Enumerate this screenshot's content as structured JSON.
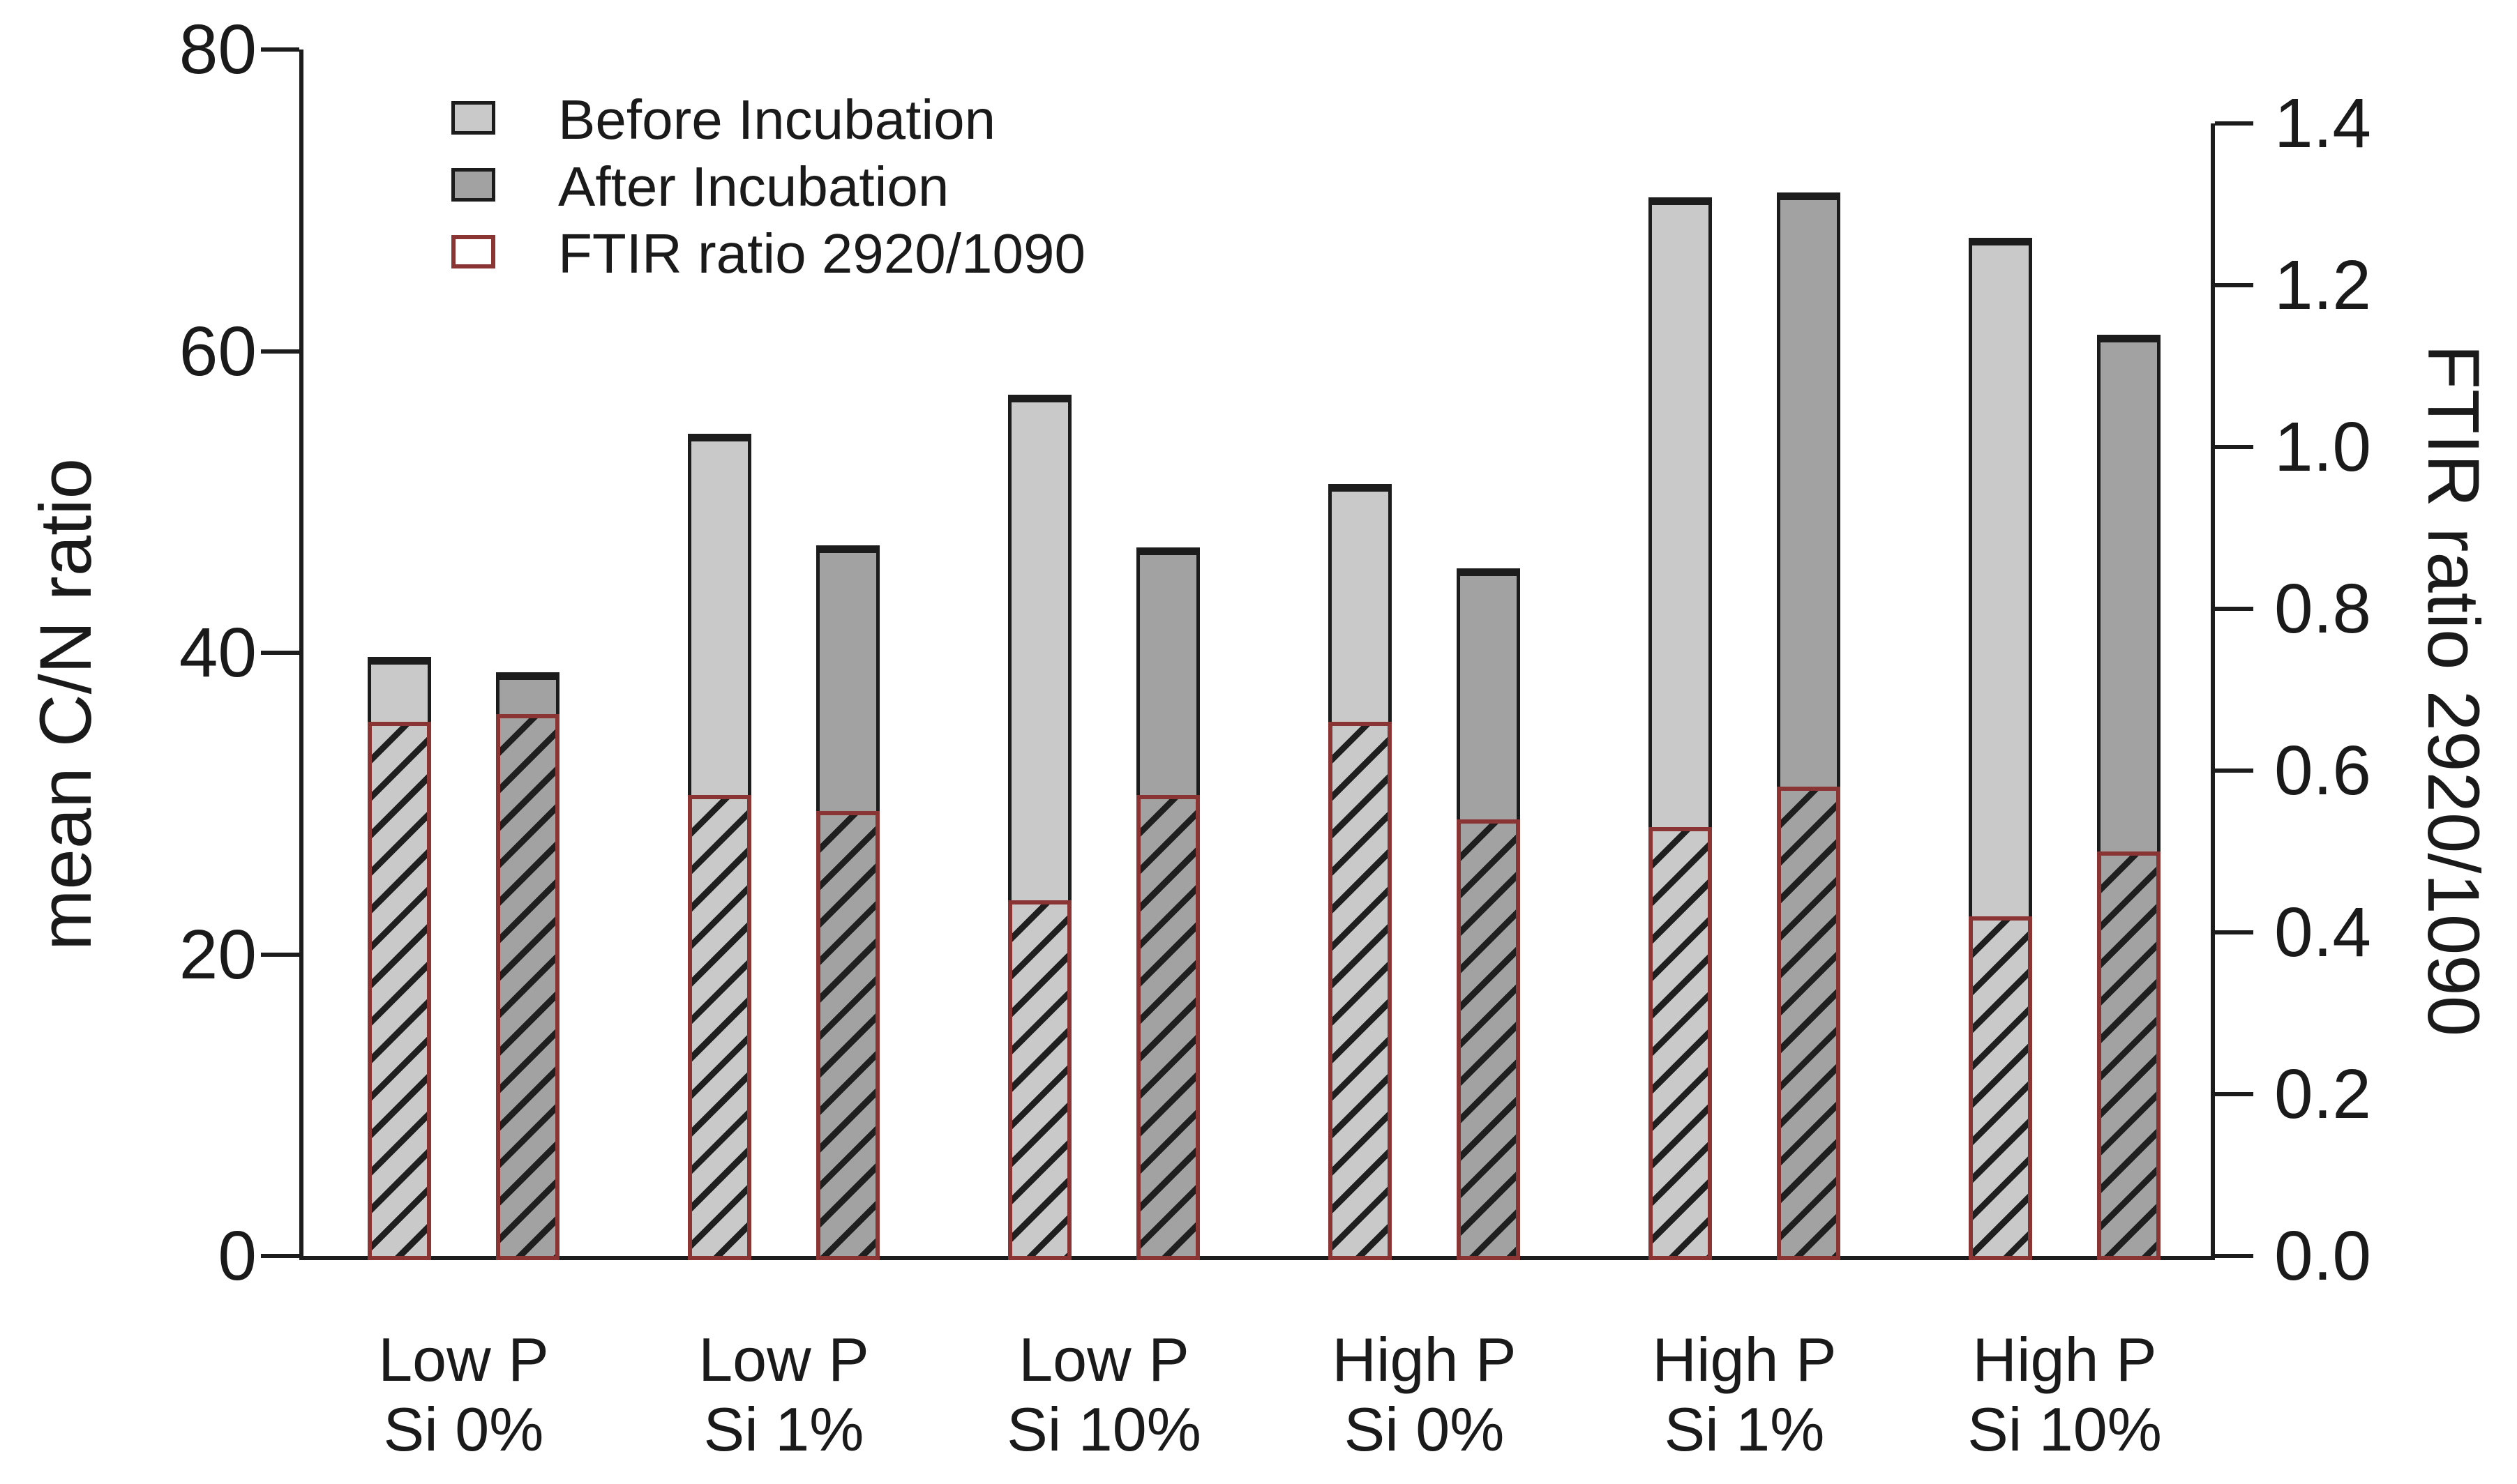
{
  "chart_data": {
    "type": "bar",
    "title": "",
    "categories": [
      {
        "line1": "Low P",
        "line2": "Si 0%"
      },
      {
        "line1": "Low P",
        "line2": "Si 1%"
      },
      {
        "line1": "Low P",
        "line2": "Si 10%"
      },
      {
        "line1": "High P",
        "line2": "Si 0%"
      },
      {
        "line1": "High P",
        "line2": "Si 1%"
      },
      {
        "line1": "High P",
        "line2": "Si 10%"
      }
    ],
    "series": [
      {
        "name": "Before Incubation",
        "axis": "left",
        "values": [
          39.7,
          54.5,
          57.1,
          51.2,
          70.2,
          67.5
        ]
      },
      {
        "name": "After Incubation",
        "axis": "left",
        "values": [
          38.7,
          47.1,
          47.0,
          45.6,
          70.5,
          61.1
        ]
      },
      {
        "name": "FTIR ratio 2920/1090 (before bars)",
        "axis": "right",
        "values": [
          0.66,
          0.57,
          0.44,
          0.66,
          0.53,
          0.42
        ]
      },
      {
        "name": "FTIR ratio 2920/1090 (after bars)",
        "axis": "right",
        "values": [
          0.67,
          0.55,
          0.57,
          0.54,
          0.58,
          0.5
        ]
      }
    ],
    "left_axis": {
      "label": "mean C/N ratio",
      "min": 0,
      "max": 80,
      "tick_labels": [
        "0",
        "20",
        "40",
        "60",
        "80"
      ],
      "tick_values": [
        0,
        20,
        40,
        60,
        80
      ]
    },
    "right_axis": {
      "label": "FTIR ratio 2920/1090",
      "min": 0.0,
      "max": 1.4,
      "tick_labels": [
        "0.0",
        "0.2",
        "0.4",
        "0.6",
        "0.8",
        "1.0",
        "1.2",
        "1.4"
      ],
      "tick_values": [
        0.0,
        0.2,
        0.4,
        0.6,
        0.8,
        1.0,
        1.2,
        1.4
      ]
    },
    "legend": [
      {
        "label": "Before Incubation",
        "swatch": "before"
      },
      {
        "label": "After Incubation",
        "swatch": "after"
      },
      {
        "label": "FTIR ratio 2920/1090",
        "swatch": "ftir"
      }
    ],
    "legend_position": "top-left",
    "grid": false,
    "colors": {
      "before": "#c9c9c9",
      "after": "#a2a2a2",
      "ftir_border": "#8a3433",
      "bar_border": "#1c1c1c",
      "hatch": "#1f1f1f",
      "text": "#1a1a1a",
      "background": "#ffffff"
    }
  }
}
